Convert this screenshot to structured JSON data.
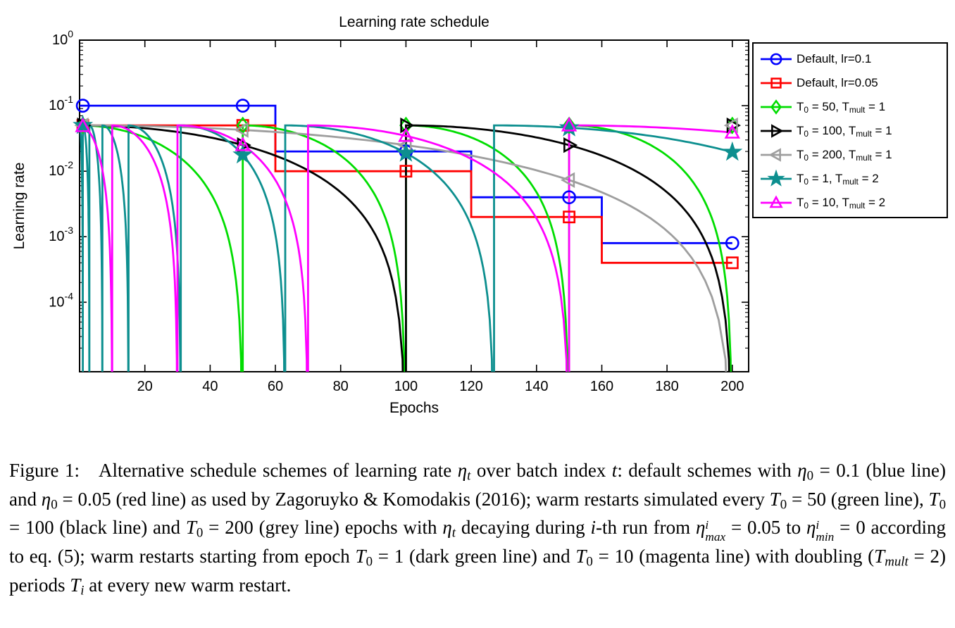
{
  "chart_data": {
    "type": "line",
    "title": "Learning rate schedule",
    "xlabel": "Epochs",
    "ylabel": "Learning rate",
    "x_range": [
      0,
      205
    ],
    "x_ticks": [
      20,
      40,
      60,
      80,
      100,
      120,
      140,
      160,
      180,
      200
    ],
    "y_scale": "log10",
    "y_tick_exponents": [
      0,
      -1,
      -2,
      -3,
      -4
    ],
    "y_range_exponents": [
      -5.06,
      0
    ],
    "grid": false,
    "legend": {
      "position": "outside-right-top",
      "border": true
    },
    "epochs_max": 200,
    "marker_epochs": [
      1,
      50,
      100,
      150,
      200
    ],
    "series": [
      {
        "name": "Default, lr=0.1",
        "color": "#0000ff",
        "marker": "circle",
        "schedule": {
          "kind": "step",
          "values": [
            0.1,
            0.02,
            0.004,
            0.0008
          ],
          "boundaries": [
            60,
            120,
            160
          ]
        },
        "label": [
          {
            "t": "Default, lr=0.1",
            "s": "rm"
          }
        ]
      },
      {
        "name": "Default, lr=0.05",
        "color": "#ff0000",
        "marker": "square",
        "schedule": {
          "kind": "step",
          "values": [
            0.05,
            0.01,
            0.002,
            0.0004
          ],
          "boundaries": [
            60,
            120,
            160
          ]
        },
        "label": [
          {
            "t": "Default, lr=0.05",
            "s": "rm"
          }
        ]
      },
      {
        "name": "T0 = 50, Tmult = 1",
        "color": "#00dd00",
        "marker": "diamond",
        "schedule": {
          "kind": "cosine_restarts",
          "eta_max": 0.05,
          "eta_min": 0,
          "T0": 50,
          "Tmult": 1
        },
        "label": [
          {
            "t": "T",
            "s": "rm"
          },
          {
            "t": "0",
            "s": "subrm"
          },
          {
            "t": " = 50, T",
            "s": "rm"
          },
          {
            "t": "mult",
            "s": "subrm"
          },
          {
            "t": " = 1",
            "s": "rm"
          }
        ]
      },
      {
        "name": "T0 = 100, Tmult = 1",
        "color": "#000000",
        "marker": "triangle-right",
        "schedule": {
          "kind": "cosine_restarts",
          "eta_max": 0.05,
          "eta_min": 0,
          "T0": 100,
          "Tmult": 1
        },
        "label": [
          {
            "t": "T",
            "s": "rm"
          },
          {
            "t": "0",
            "s": "subrm"
          },
          {
            "t": " = 100, T",
            "s": "rm"
          },
          {
            "t": "mult",
            "s": "subrm"
          },
          {
            "t": " = 1",
            "s": "rm"
          }
        ]
      },
      {
        "name": "T0 = 200, Tmult = 1",
        "color": "#9e9e9e",
        "marker": "triangle-left",
        "schedule": {
          "kind": "cosine_restarts",
          "eta_max": 0.05,
          "eta_min": 0,
          "T0": 200,
          "Tmult": 1
        },
        "label": [
          {
            "t": "T",
            "s": "rm"
          },
          {
            "t": "0",
            "s": "subrm"
          },
          {
            "t": " = 200, T",
            "s": "rm"
          },
          {
            "t": "mult",
            "s": "subrm"
          },
          {
            "t": " = 1",
            "s": "rm"
          }
        ]
      },
      {
        "name": "T0 = 1, Tmult = 2",
        "color": "#0d8f8f",
        "marker": "star",
        "schedule": {
          "kind": "cosine_restarts",
          "eta_max": 0.05,
          "eta_min": 0,
          "T0": 1,
          "Tmult": 2
        },
        "label": [
          {
            "t": "T",
            "s": "rm"
          },
          {
            "t": "0",
            "s": "subrm"
          },
          {
            "t": " = 1, T",
            "s": "rm"
          },
          {
            "t": "mult",
            "s": "subrm"
          },
          {
            "t": " = 2",
            "s": "rm"
          }
        ]
      },
      {
        "name": "T0 = 10, Tmult = 2",
        "color": "#ff00ff",
        "marker": "triangle-up",
        "schedule": {
          "kind": "cosine_restarts",
          "eta_max": 0.05,
          "eta_min": 0,
          "T0": 10,
          "Tmult": 2
        },
        "label": [
          {
            "t": "T",
            "s": "rm"
          },
          {
            "t": "0",
            "s": "subrm"
          },
          {
            "t": " = 10, T",
            "s": "rm"
          },
          {
            "t": "mult",
            "s": "subrm"
          },
          {
            "t": " = 2",
            "s": "rm"
          }
        ]
      }
    ]
  },
  "caption": {
    "segments": [
      {
        "t": "Figure 1:  Alternative schedule schemes of learning rate ",
        "s": "rm"
      },
      {
        "t": "η",
        "s": "it"
      },
      {
        "t": "t",
        "s": "sub"
      },
      {
        "t": " over batch index ",
        "s": "rm"
      },
      {
        "t": "t",
        "s": "it"
      },
      {
        "t": ": default schemes with ",
        "s": "rm"
      },
      {
        "t": "η",
        "s": "it"
      },
      {
        "t": "0",
        "s": "subrm"
      },
      {
        "t": " = 0.1 (blue line) and ",
        "s": "rm"
      },
      {
        "t": "η",
        "s": "it"
      },
      {
        "t": "0",
        "s": "subrm"
      },
      {
        "t": " = 0.05 (red line) as used by Zagoruyko & Komodakis (2016); warm restarts simulated every ",
        "s": "rm"
      },
      {
        "t": "T",
        "s": "it"
      },
      {
        "t": "0",
        "s": "subrm"
      },
      {
        "t": " = 50 (green line), ",
        "s": "rm"
      },
      {
        "t": "T",
        "s": "it"
      },
      {
        "t": "0",
        "s": "subrm"
      },
      {
        "t": " = 100 (black line) and ",
        "s": "rm"
      },
      {
        "t": "T",
        "s": "it"
      },
      {
        "t": "0",
        "s": "subrm"
      },
      {
        "t": " = 200 (grey line) epochs with ",
        "s": "rm"
      },
      {
        "t": "η",
        "s": "it"
      },
      {
        "t": "t",
        "s": "sub"
      },
      {
        "t": " decaying during ",
        "s": "rm"
      },
      {
        "t": "i",
        "s": "it"
      },
      {
        "t": "-th run from ",
        "s": "rm"
      },
      {
        "t": "η",
        "s": "it"
      },
      {
        "sup": "i",
        "sub": "max",
        "s": "supsub"
      },
      {
        "t": " = 0.05 to ",
        "s": "rm"
      },
      {
        "t": "η",
        "s": "it"
      },
      {
        "sup": "i",
        "sub": "min",
        "s": "supsub"
      },
      {
        "t": " = 0 according to eq. (5); warm restarts starting from epoch ",
        "s": "rm"
      },
      {
        "t": "T",
        "s": "it"
      },
      {
        "t": "0",
        "s": "subrm"
      },
      {
        "t": " = 1 (dark green line) and ",
        "s": "rm"
      },
      {
        "t": "T",
        "s": "it"
      },
      {
        "t": "0",
        "s": "subrm"
      },
      {
        "t": " = 10 (magenta line) with doubling (",
        "s": "rm"
      },
      {
        "t": "T",
        "s": "it"
      },
      {
        "t": "mult",
        "s": "sub"
      },
      {
        "t": " = 2) periods ",
        "s": "rm"
      },
      {
        "t": "T",
        "s": "it"
      },
      {
        "t": "i",
        "s": "sub"
      },
      {
        "t": " at every new warm restart.",
        "s": "rm"
      }
    ]
  }
}
